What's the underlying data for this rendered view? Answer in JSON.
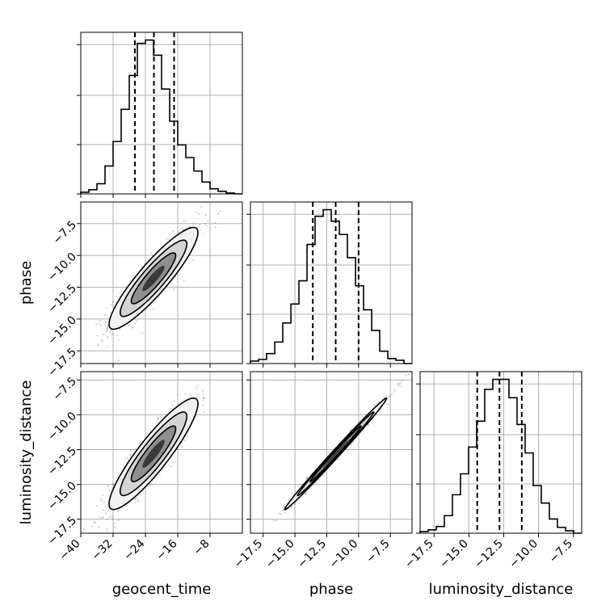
{
  "chart_data": {
    "type": "corner",
    "parameters": [
      "geocent_time",
      "phase",
      "luminosity_distance"
    ],
    "ranges": {
      "geocent_time": [
        -40,
        0
      ],
      "phase": [
        -18.5,
        -5.8
      ],
      "luminosity_distance": [
        -18.5,
        -6.9
      ]
    },
    "ticks": {
      "geocent_time": [
        -40,
        -32,
        -24,
        -16,
        -8
      ],
      "phase": [
        -17.5,
        -15.0,
        -12.5,
        -10.0,
        -7.5
      ],
      "luminosity_distance": [
        -17.5,
        -15.0,
        -12.5,
        -10.0,
        -7.5
      ]
    },
    "tick_labels": {
      "geocent_time": [
        "−40",
        "−32",
        "−24",
        "−16",
        "−8"
      ],
      "phase": [
        "−17.5",
        "−15.0",
        "−12.5",
        "−10.0",
        "−7.5"
      ],
      "luminosity_distance": [
        "−17.5",
        "−15.0",
        "−12.5",
        "−10.0",
        "−7.5"
      ]
    },
    "grid": true,
    "marginals": [
      {
        "parameter": "geocent_time",
        "bin_edges": [
          -40,
          -38,
          -36,
          -34,
          -32,
          -30,
          -28,
          -26,
          -24,
          -22,
          -20,
          -18,
          -16,
          -14,
          -12,
          -10,
          -8,
          -6,
          -4,
          -2,
          0
        ],
        "counts": [
          2,
          5,
          12,
          33,
          62,
          100,
          140,
          178,
          182,
          164,
          124,
          86,
          58,
          43,
          27,
          14,
          6,
          3,
          1,
          0
        ],
        "quantiles": [
          -26.6,
          -21.9,
          -16.9
        ]
      },
      {
        "parameter": "phase",
        "bin_edges": [
          -18.5,
          -17.86,
          -17.23,
          -16.59,
          -15.96,
          -15.32,
          -14.69,
          -14.05,
          -13.42,
          -12.78,
          -12.15,
          -11.51,
          -10.88,
          -10.24,
          -9.61,
          -8.97,
          -8.34,
          -7.7,
          -7.07,
          -6.43,
          -5.8
        ],
        "counts": [
          3,
          5,
          12,
          26,
          49,
          72,
          100,
          144,
          178,
          186,
          172,
          156,
          128,
          94,
          65,
          40,
          15,
          6,
          4,
          0
        ],
        "quantiles": [
          -13.6,
          -11.8,
          -10.0
        ]
      },
      {
        "parameter": "luminosity_distance",
        "bin_edges": [
          -18.5,
          -17.92,
          -17.34,
          -16.76,
          -16.18,
          -15.6,
          -15.02,
          -14.44,
          -13.86,
          -13.28,
          -12.7,
          -12.12,
          -11.54,
          -10.96,
          -10.38,
          -9.8,
          -9.22,
          -8.64,
          -8.06,
          -7.48,
          -6.9
        ],
        "counts": [
          2,
          4,
          8,
          21,
          46,
          71,
          103,
          134,
          172,
          184,
          184,
          162,
          130,
          96,
          57,
          36,
          17,
          7,
          3,
          0
        ],
        "quantiles": [
          -14.4,
          -12.8,
          -11.2
        ]
      }
    ],
    "pairs": [
      {
        "x": "geocent_time",
        "y": "phase",
        "mean": [
          -22.0,
          -11.8
        ],
        "std": [
          5.5,
          2.0
        ],
        "correlation": 0.9,
        "contour_levels_sigma": [
          0.5,
          1.0,
          1.5,
          2.0
        ]
      },
      {
        "x": "geocent_time",
        "y": "luminosity_distance",
        "mean": [
          -22.0,
          -12.8
        ],
        "std": [
          5.5,
          2.0
        ],
        "correlation": 0.9,
        "contour_levels_sigma": [
          0.5,
          1.0,
          1.5,
          2.0
        ]
      },
      {
        "x": "phase",
        "y": "luminosity_distance",
        "mean": [
          -11.8,
          -12.8
        ],
        "std": [
          2.0,
          2.0
        ],
        "correlation": 0.995,
        "contour_levels_sigma": [
          0.5,
          1.0,
          1.5,
          2.0
        ]
      }
    ],
    "xlabels": [
      "geocent_time",
      "phase",
      "luminosity_distance"
    ],
    "ylabels": [
      "",
      "phase",
      "luminosity_distance"
    ]
  }
}
